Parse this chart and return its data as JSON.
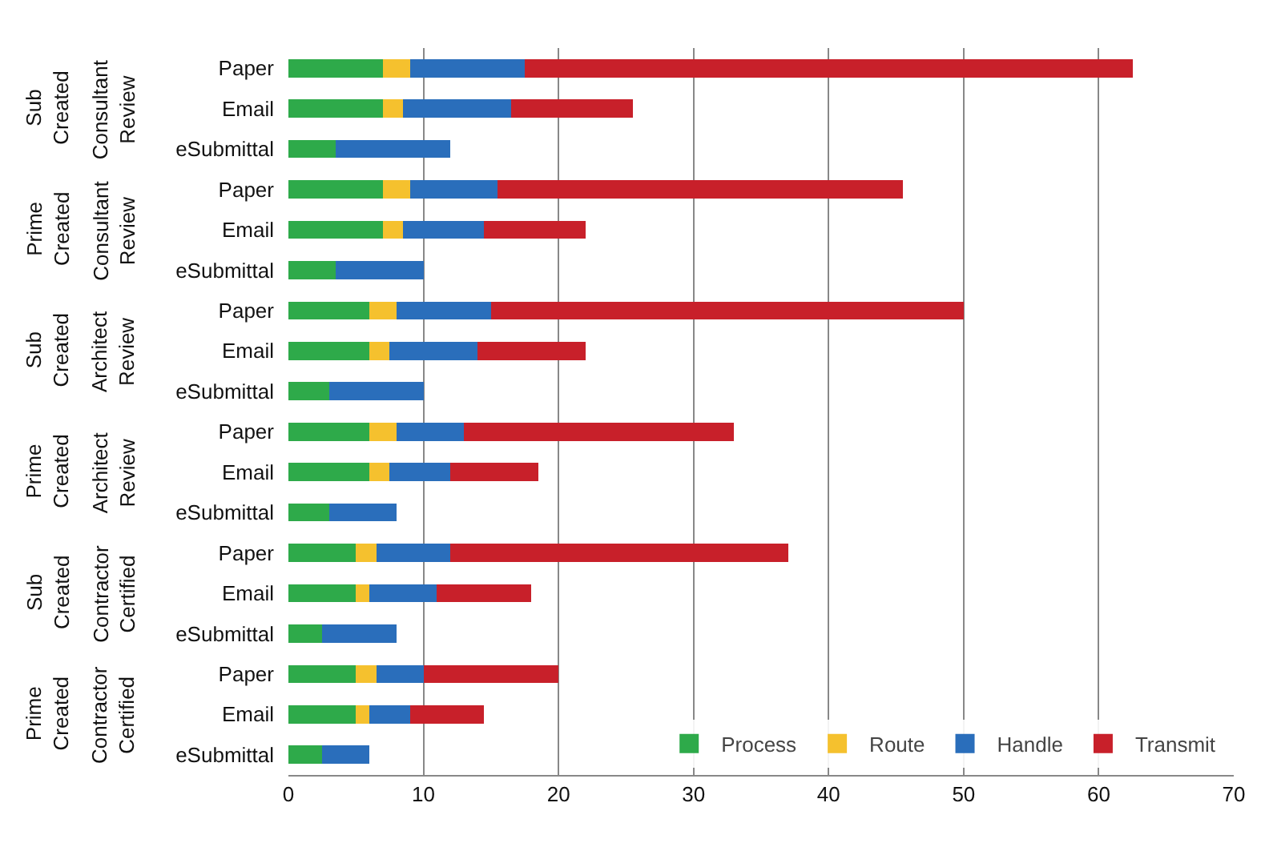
{
  "chart_data": {
    "type": "bar",
    "orientation": "horizontal",
    "stacked": true,
    "categories": [
      "Paper",
      "Email",
      "eSubmittal",
      "Paper",
      "Email",
      "eSubmittal",
      "Paper",
      "Email",
      "eSubmittal",
      "Paper",
      "Email",
      "eSubmittal",
      "Paper",
      "Email",
      "eSubmittal",
      "Paper",
      "Email",
      "eSubmittal"
    ],
    "series": [
      {
        "name": "Process",
        "color": "#2eaa4a",
        "values": [
          7,
          7,
          3.5,
          7,
          7,
          3.5,
          6,
          6,
          3,
          6,
          6,
          3,
          5,
          5,
          2.5,
          5,
          5,
          2.5
        ]
      },
      {
        "name": "Route",
        "color": "#f5c12e",
        "values": [
          2,
          1.5,
          0,
          2,
          1.5,
          0,
          2,
          1.5,
          0,
          2,
          1.5,
          0,
          1.5,
          1,
          0,
          1.5,
          1,
          0
        ]
      },
      {
        "name": "Handle",
        "color": "#2a6ebb",
        "values": [
          8.5,
          8,
          8.5,
          6.5,
          6,
          6.5,
          7,
          6.5,
          7,
          5,
          4.5,
          5,
          5.5,
          5,
          5.5,
          3.5,
          3,
          3.5
        ]
      },
      {
        "name": "Transmit",
        "color": "#c8202a",
        "values": [
          45,
          9,
          0,
          30,
          7.5,
          0,
          35,
          8,
          0,
          20,
          6.5,
          0,
          25,
          7,
          0,
          10,
          5.5,
          0
        ]
      }
    ],
    "annotations": [
      "Sub Created",
      "Consultant Review",
      "Prime Created",
      "Consultant Review",
      "Sub Created",
      "Architect Review",
      "Prime Created",
      "Architect Review",
      "Sub Created",
      "Contractor Certified",
      "Prime Created",
      "Contractor Certified"
    ],
    "xlim": [
      0,
      70
    ],
    "xticks": [
      0,
      10,
      20,
      30,
      40,
      50,
      60,
      70
    ],
    "grid": "x",
    "legend": "bottom right"
  }
}
